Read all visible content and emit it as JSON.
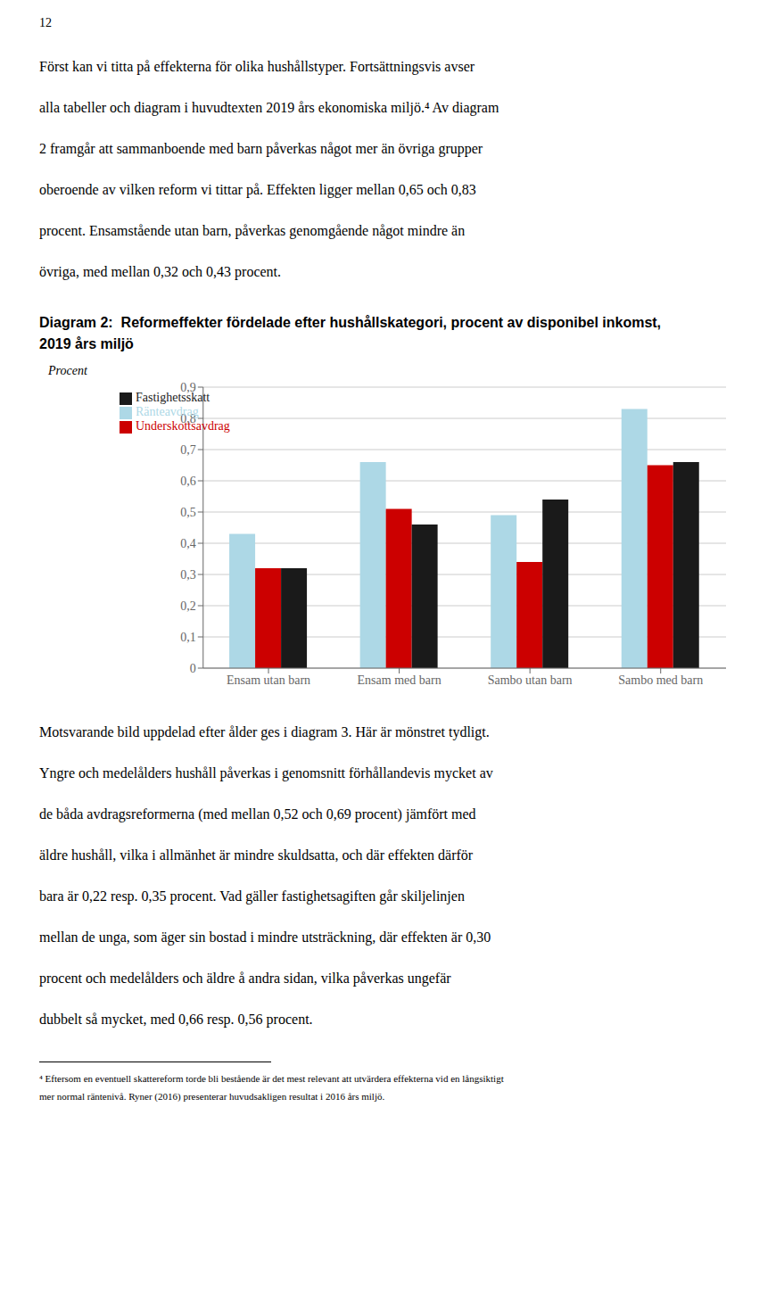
{
  "chart_data": {
    "type": "bar",
    "title": "Diagram 2:  Reformeffekter fördelade efter hushållskategori, procent av disponibel inkomst, 2019 års miljö",
    "y_label": "Procent",
    "categories": [
      "Ensam utan barn",
      "Ensam med barn",
      "Sambo utan barn",
      "Sambo med barn"
    ],
    "series": [
      {
        "name": "Ränteavdrag",
        "color": "#add8e6",
        "values": [
          0.43,
          0.66,
          0.49,
          0.83
        ]
      },
      {
        "name": "Underskottsavdrag",
        "color": "#cc0000",
        "values": [
          0.32,
          0.51,
          0.34,
          0.65
        ]
      },
      {
        "name": "Fastighetsskatt",
        "color": "#1a1a1a",
        "values": [
          0.32,
          0.46,
          0.54,
          0.66
        ]
      }
    ],
    "ylim": [
      0,
      0.9
    ],
    "yticks": [
      0,
      {
        "value": 0.1,
        "label": "0,1"
      },
      {
        "value": 0.2,
        "label": "0,2"
      },
      {
        "value": 0.3,
        "label": "0,3"
      },
      {
        "value": 0.4,
        "label": "0,4"
      },
      {
        "value": 0.5,
        "label": "0,5"
      },
      {
        "value": 0.6,
        "label": "0,6"
      },
      {
        "value": 0.7,
        "label": "0,7"
      },
      {
        "value": 0.8,
        "label": "0,8"
      },
      {
        "value": 0.9,
        "label": "0,9"
      }
    ],
    "grid": true,
    "legend": "upper left",
    "annotations": {
      "page_number": "12",
      "intro": [
        "Först kan vi titta på effekterna för olika hushållstyper. Fortsättningsvis avser",
        "alla tabeller och diagram i huvudtexten 2019 års ekonomiska miljö.⁴ Av diagram",
        "2 framgår att sammanboende med barn påverkas något mer än övriga grupper",
        "oberoende av vilken reform vi tittar på. Effekten ligger mellan 0,65 och 0,83",
        "procent. Ensamstående utan barn, påverkas genomgående något mindre än",
        "övriga, med mellan 0,32 och 0,43 procent."
      ],
      "outro": [
        "Motsvarande bild uppdelad efter ålder ges i diagram 3. Här är mönstret tydligt.",
        "Yngre och medelålders hushåll påverkas i genomsnitt förhållandevis mycket av",
        "de båda avdragsreformerna (med mellan 0,52 och 0,69 procent) jämfört med",
        "äldre hushåll, vilka i allmänhet är mindre skuldsatta, och där effekten därför",
        "bara är 0,22 resp. 0,35 procent. Vad gäller fastighetsagiften går skiljelinjen",
        "mellan de unga, som äger sin bostad i mindre utsträckning, där effekten är 0,30",
        "procent och medelålders och äldre å andra sidan, vilka påverkas ungefär",
        "dubbelt så mycket, med 0,66 resp. 0,56 procent."
      ],
      "footnotes": [
        "⁴ Eftersom en eventuell skattereform torde bli bestående är det mest relevant att utvärdera effekterna vid en långsiktigt",
        "mer normal räntenivå. Ryner (2016) presenterar huvudsakligen resultat i 2016 års miljö."
      ]
    }
  }
}
